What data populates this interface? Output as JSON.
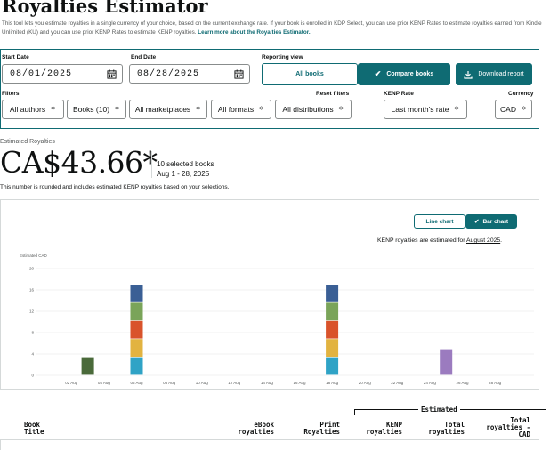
{
  "page": {
    "title": "Royalties Estimator",
    "intro": "This tool lets you estimate royalties in a single currency of your choice, based on the current exchange rate. If your book is enrolled in KDP Select, you can use prior KENP Rates to estimate royalties earned from Kindle Unlimited (KU) and you can use prior KENP Rates to estimate KENP royalties.",
    "intro_link": "Learn more about the Royalties Estimator."
  },
  "controls": {
    "start_date_label": "Start Date",
    "start_date": "08/01/2025",
    "end_date_label": "End Date",
    "end_date": "08/28/2025",
    "reporting_view_label": "Reporting view",
    "all_books_label": "All books",
    "compare_books_label": "Compare books",
    "download_label": "Download report",
    "filters_label": "Filters",
    "reset_filters_label": "Reset filters",
    "kenp_rate_label": "KENP Rate",
    "currency_label": "Currency",
    "authors": "All authors",
    "books": "Books (10)",
    "marketplaces": "All marketplaces",
    "formats": "All formats",
    "distributions": "All distributions",
    "kenp_rate": "Last month's rate",
    "currency": "CAD"
  },
  "summary": {
    "label": "Estimated Royalties",
    "amount": "CA$43.66*",
    "books": "10 selected books",
    "range": "Aug 1 - 28, 2025",
    "note": "This number is rounded and includes estimated KENP royalties based on your selections."
  },
  "chart_toolbar": {
    "line_chart": "Line chart",
    "bar_chart": "Bar chart",
    "kenp_note": "KENP royalties are estimated for",
    "kenp_month": "August 2025"
  },
  "chart_data": {
    "type": "bar",
    "stacked": true,
    "ylabel": "Estimated CAD",
    "ylim": [
      0,
      20
    ],
    "yticks": [
      0,
      4,
      8,
      12,
      16,
      20
    ],
    "xticks": [
      "02 Aug",
      "04 Aug",
      "06 Aug",
      "08 Aug",
      "10 Aug",
      "12 Aug",
      "14 Aug",
      "16 Aug",
      "18 Aug",
      "20 Aug",
      "22 Aug",
      "24 Aug",
      "26 Aug",
      "28 Aug"
    ],
    "x": [
      "01 Aug",
      "02 Aug",
      "03 Aug",
      "04 Aug",
      "05 Aug",
      "06 Aug",
      "07 Aug",
      "08 Aug",
      "09 Aug",
      "10 Aug",
      "11 Aug",
      "12 Aug",
      "13 Aug",
      "14 Aug",
      "15 Aug",
      "16 Aug",
      "17 Aug",
      "18 Aug",
      "19 Aug",
      "20 Aug",
      "21 Aug",
      "22 Aug",
      "23 Aug",
      "24 Aug",
      "25 Aug",
      "26 Aug",
      "27 Aug",
      "28 Aug"
    ],
    "series": [
      {
        "color": "#4a6a3a",
        "values": [
          0,
          0,
          3.4,
          0,
          0,
          0,
          0,
          0,
          0,
          0,
          0,
          0,
          0,
          0,
          0,
          0,
          0,
          0,
          0,
          0,
          0,
          0,
          0,
          0,
          0,
          0,
          0,
          0
        ]
      },
      {
        "color": "#2fa3c6",
        "values": [
          0,
          0,
          0,
          0,
          0,
          3.4,
          0,
          0,
          0,
          0,
          0,
          0,
          0,
          0,
          0,
          0,
          0,
          3.4,
          0,
          0,
          0,
          0,
          0,
          0,
          0,
          0,
          0,
          0
        ]
      },
      {
        "color": "#e2b340",
        "values": [
          0,
          0,
          0,
          0,
          0,
          3.4,
          0,
          0,
          0,
          0,
          0,
          0,
          0,
          0,
          0,
          0,
          0,
          3.4,
          0,
          0,
          0,
          0,
          0,
          0,
          0,
          0,
          0,
          0
        ]
      },
      {
        "color": "#d9532b",
        "values": [
          0,
          0,
          0,
          0,
          0,
          3.4,
          0,
          0,
          0,
          0,
          0,
          0,
          0,
          0,
          0,
          0,
          0,
          3.4,
          0,
          0,
          0,
          0,
          0,
          0,
          0,
          0,
          0,
          0
        ]
      },
      {
        "color": "#7aa459",
        "values": [
          0,
          0,
          0,
          0,
          0,
          3.4,
          0,
          0,
          0,
          0,
          0,
          0,
          0,
          0,
          0,
          0,
          0,
          3.4,
          0,
          0,
          0,
          0,
          0,
          0,
          0,
          0,
          0,
          0
        ]
      },
      {
        "color": "#3a5f95",
        "values": [
          0,
          0,
          0,
          0,
          0,
          3.4,
          0,
          0,
          0,
          0,
          0,
          0,
          0,
          0,
          0,
          0,
          0,
          3.4,
          0,
          0,
          0,
          0,
          0,
          0,
          0,
          0,
          0,
          0
        ]
      },
      {
        "color": "#9b7bbf",
        "values": [
          0,
          0,
          0,
          0,
          0,
          0,
          0,
          0,
          0,
          0,
          0,
          0,
          0,
          0,
          0,
          0,
          0,
          0,
          0,
          0,
          0,
          0,
          0,
          0,
          4.9,
          0,
          0,
          0
        ]
      }
    ],
    "grid": true
  },
  "table": {
    "estimated_label": "Estimated",
    "headers": {
      "book_title": [
        "Book",
        "Title"
      ],
      "ebook": [
        "eBook",
        "royalties"
      ],
      "print": [
        "Print",
        "Royalties"
      ],
      "kenp": [
        "KENP",
        "royalties"
      ],
      "total": [
        "Total",
        "royalties"
      ],
      "total_cad": [
        "Total",
        "royalties -",
        "CAD"
      ]
    }
  },
  "colors": {
    "teal": "#0f6b73",
    "muted": "#565959"
  },
  "icons": {
    "calendar": "calendar-icon",
    "check": "checkmark-icon",
    "download": "download-icon",
    "chevron": "chevron-updown-icon"
  }
}
